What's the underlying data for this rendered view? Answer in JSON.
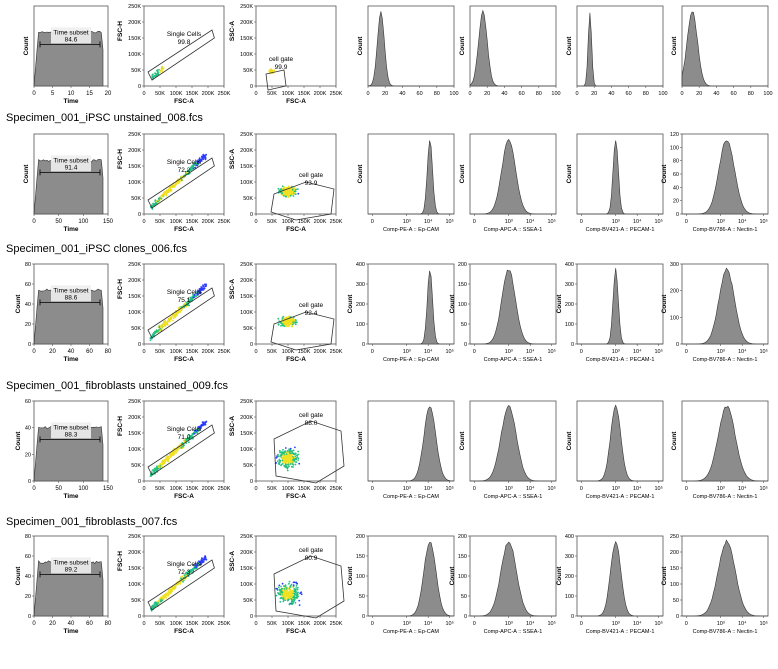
{
  "rows": [
    {
      "title": "",
      "time_gate": {
        "label": "Time subset",
        "value": "84.6"
      },
      "time_x_ticks": [
        "0",
        "5",
        "10",
        "15",
        "20"
      ],
      "time_xlabel": "Time",
      "time_y_ticks": [],
      "singlets": {
        "label": "Single Cells",
        "value": "99.8"
      },
      "cellgate": {
        "label": "cell gate",
        "value": "99.9"
      },
      "fsc_ticks": [
        "0",
        "50K",
        "100K",
        "150K",
        "200K",
        "250K"
      ],
      "hist_x_ticks": [
        "0",
        "20",
        "40",
        "60",
        "80",
        "100"
      ],
      "hist_xlabels": [
        "",
        "",
        "",
        ""
      ],
      "hist_y_ticks": [
        [],
        [],
        [],
        []
      ]
    },
    {
      "title": "Specimen_001_iPSC unstained_008.fcs",
      "time_gate": {
        "label": "Time subset",
        "value": "91.4"
      },
      "time_x_ticks": [
        "0",
        "50",
        "100",
        "150"
      ],
      "time_xlabel": "Time",
      "time_y_ticks": [],
      "singlets": {
        "label": "Single Cells",
        "value": "72.2"
      },
      "cellgate": {
        "label": "cell gate",
        "value": "93.9"
      },
      "fsc_ticks": [
        "0",
        "50K",
        "100K",
        "150K",
        "200K",
        "250K"
      ],
      "hist_x_ticks": [
        "0",
        "10³",
        "10⁴",
        "10⁵"
      ],
      "hist_xlabels": [
        "Comp-PE-A :: Ep-CAM",
        "Comp-APC-A :: SSEA-1",
        "Comp-BV421-A :: PECAM-1",
        "Comp-BV786-A :: Nectin-1"
      ],
      "hist_y_ticks": [
        [],
        [],
        [],
        [
          "0",
          "20",
          "40",
          "60",
          "80",
          "100",
          "120"
        ]
      ]
    },
    {
      "title": "Specimen_001_iPSC clones_006.fcs",
      "time_gate": {
        "label": "Time subset",
        "value": "88.6"
      },
      "time_x_ticks": [
        "0",
        "20",
        "40",
        "60",
        "80"
      ],
      "time_xlabel": "Time",
      "time_y_ticks": [
        "0",
        "20",
        "40",
        "60",
        "80"
      ],
      "singlets": {
        "label": "Single Cells",
        "value": "75.1"
      },
      "cellgate": {
        "label": "cell gate",
        "value": "92.4"
      },
      "fsc_ticks": [
        "0",
        "50K",
        "100K",
        "150K",
        "200K",
        "250K"
      ],
      "hist_x_ticks": [
        "0",
        "10³",
        "10⁴",
        "10⁵"
      ],
      "hist_xlabels": [
        "Comp-PE-A :: Ep-CAM",
        "Comp-APC-A :: SSEA-1",
        "Comp-BV421-A :: PECAM-1",
        "Comp-BV786-A :: Nectin-1"
      ],
      "hist_y_ticks": [
        [
          "0",
          "100",
          "200",
          "300",
          "400"
        ],
        [
          "0",
          "50",
          "100",
          "150",
          "200"
        ],
        [
          "0",
          "100",
          "200",
          "300",
          "400"
        ],
        [
          "0",
          "100",
          "200",
          "300"
        ]
      ]
    },
    {
      "title": "Specimen_001_fibroblasts unstained_009.fcs",
      "time_gate": {
        "label": "Time subset",
        "value": "88.3"
      },
      "time_x_ticks": [
        "0",
        "50",
        "100",
        "150"
      ],
      "time_xlabel": "Time",
      "time_y_ticks": [
        "0",
        "20",
        "40",
        "60"
      ],
      "singlets": {
        "label": "Single Cells",
        "value": "71.0"
      },
      "cellgate": {
        "label": "cell gate",
        "value": "88.0"
      },
      "fsc_ticks": [
        "0",
        "50K",
        "100K",
        "150K",
        "200K",
        "250K"
      ],
      "hist_x_ticks": [
        "0",
        "10³",
        "10⁴",
        "10⁵"
      ],
      "hist_xlabels": [
        "Comp-PE-A :: Ep-CAM",
        "Comp-APC-A :: SSEA-1",
        "Comp-BV421-A :: PECAM-1",
        "Comp-BV786-A :: Nectin-1"
      ],
      "hist_y_ticks": [
        [],
        [],
        [],
        []
      ]
    },
    {
      "title": "Specimen_001_fibroblasts_007.fcs",
      "time_gate": {
        "label": "Time subset",
        "value": "89.2"
      },
      "time_x_ticks": [
        "0",
        "20",
        "40",
        "60",
        "80"
      ],
      "time_xlabel": "Time",
      "time_y_ticks": [
        "0",
        "20",
        "40",
        "60",
        "80"
      ],
      "singlets": {
        "label": "Single Cells",
        "value": "72.3"
      },
      "cellgate": {
        "label": "cell gate",
        "value": "80.9"
      },
      "fsc_ticks": [
        "0",
        "50K",
        "100K",
        "150K",
        "200K",
        "250K"
      ],
      "hist_x_ticks": [
        "0",
        "10³",
        "10⁴",
        "10⁵"
      ],
      "hist_xlabels": [
        "Comp-PE-A :: Ep-CAM",
        "Comp-APC-A :: SSEA-1",
        "Comp-BV421-A :: PECAM-1",
        "Comp-BV786-A :: Nectin-1"
      ],
      "hist_y_ticks": [
        [
          "0",
          "50",
          "100",
          "150",
          "200"
        ],
        [
          "0",
          "50",
          "100",
          "150",
          "200"
        ],
        [
          "0",
          "100",
          "200",
          "300",
          "400"
        ],
        [
          "0",
          "50",
          "100",
          "150",
          "200",
          "250"
        ]
      ]
    }
  ],
  "axis_labels": {
    "count": "Count",
    "fsc_h": "FSC-H",
    "ssc_a": "SSC-A",
    "fsc_a": "FSC-A"
  },
  "colors": {
    "histogram_fill": "#8c8c8c",
    "density_low": "#2b3cff",
    "density_mid": "#20c080",
    "density_high": "#f0e020"
  },
  "chart_data": [
    {
      "type": "area",
      "title": "",
      "xlabel": "Time",
      "ylabel": "Count",
      "gates": [
        {
          "name": "Time subset",
          "percent": 84.6
        }
      ],
      "xlim": [
        0,
        20
      ]
    },
    {
      "type": "scatter",
      "title": "",
      "xlabel": "FSC-A",
      "ylabel": "FSC-H",
      "gates": [
        {
          "name": "Single Cells",
          "percent": 99.8
        }
      ],
      "xlim": [
        0,
        250000
      ]
    },
    {
      "type": "scatter",
      "title": "",
      "xlabel": "FSC-A",
      "ylabel": "SSC-A",
      "gates": [
        {
          "name": "cell gate",
          "percent": 99.9
        }
      ],
      "xlim": [
        0,
        250000
      ]
    },
    {
      "type": "area",
      "title": "Specimen_001_iPSC unstained_008.fcs",
      "xlabel": "Time",
      "ylabel": "Count",
      "gates": [
        {
          "name": "Time subset",
          "percent": 91.4
        }
      ],
      "xlim": [
        0,
        150
      ]
    },
    {
      "type": "scatter",
      "title": "Specimen_001_iPSC unstained_008.fcs",
      "xlabel": "FSC-A",
      "ylabel": "FSC-H",
      "gates": [
        {
          "name": "Single Cells",
          "percent": 72.2
        }
      ]
    },
    {
      "type": "scatter",
      "title": "Specimen_001_iPSC unstained_008.fcs",
      "xlabel": "FSC-A",
      "ylabel": "SSC-A",
      "gates": [
        {
          "name": "cell gate",
          "percent": 93.9
        }
      ]
    },
    {
      "type": "area",
      "title": "Specimen_001_iPSC clones_006.fcs",
      "xlabel": "Time",
      "ylabel": "Count",
      "gates": [
        {
          "name": "Time subset",
          "percent": 88.6
        }
      ],
      "xlim": [
        0,
        80
      ]
    },
    {
      "type": "scatter",
      "title": "Specimen_001_iPSC clones_006.fcs",
      "xlabel": "FSC-A",
      "ylabel": "FSC-H",
      "gates": [
        {
          "name": "Single Cells",
          "percent": 75.1
        }
      ]
    },
    {
      "type": "scatter",
      "title": "Specimen_001_iPSC clones_006.fcs",
      "xlabel": "FSC-A",
      "ylabel": "SSC-A",
      "gates": [
        {
          "name": "cell gate",
          "percent": 92.4
        }
      ]
    },
    {
      "type": "area",
      "title": "Specimen_001_fibroblasts unstained_009.fcs",
      "xlabel": "Time",
      "ylabel": "Count",
      "gates": [
        {
          "name": "Time subset",
          "percent": 88.3
        }
      ],
      "xlim": [
        0,
        150
      ]
    },
    {
      "type": "scatter",
      "title": "Specimen_001_fibroblasts unstained_009.fcs",
      "xlabel": "FSC-A",
      "ylabel": "FSC-H",
      "gates": [
        {
          "name": "Single Cells",
          "percent": 71.0
        }
      ]
    },
    {
      "type": "scatter",
      "title": "Specimen_001_fibroblasts unstained_009.fcs",
      "xlabel": "FSC-A",
      "ylabel": "SSC-A",
      "gates": [
        {
          "name": "cell gate",
          "percent": 88.0
        }
      ]
    },
    {
      "type": "area",
      "title": "Specimen_001_fibroblasts_007.fcs",
      "xlabel": "Time",
      "ylabel": "Count",
      "gates": [
        {
          "name": "Time subset",
          "percent": 89.2
        }
      ],
      "xlim": [
        0,
        80
      ]
    },
    {
      "type": "scatter",
      "title": "Specimen_001_fibroblasts_007.fcs",
      "xlabel": "FSC-A",
      "ylabel": "FSC-H",
      "gates": [
        {
          "name": "Single Cells",
          "percent": 72.3
        }
      ]
    },
    {
      "type": "scatter",
      "title": "Specimen_001_fibroblasts_007.fcs",
      "xlabel": "FSC-A",
      "ylabel": "SSC-A",
      "gates": [
        {
          "name": "cell gate",
          "percent": 80.9
        }
      ]
    }
  ]
}
